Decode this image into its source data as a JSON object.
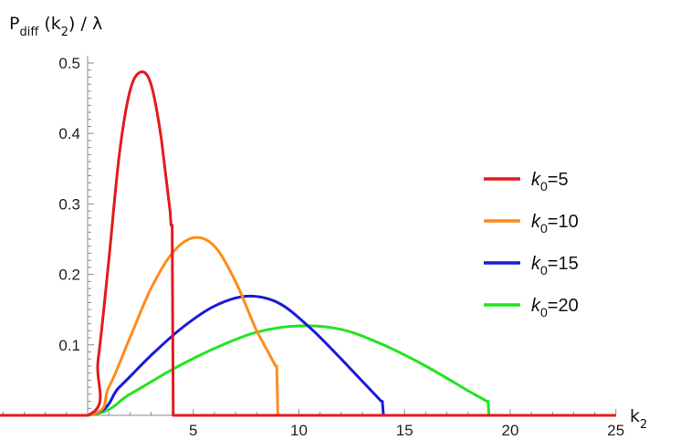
{
  "chart_data": {
    "type": "line",
    "ylabel": {
      "base": "P",
      "sub": "diff",
      "open": " (k",
      "arg_sub": "2",
      "close": ") / λ"
    },
    "xlabel": {
      "base": "k",
      "sub": "2"
    },
    "xlim": [
      -6,
      25
    ],
    "ylim": [
      0,
      0.51
    ],
    "x_ticks": [
      5,
      10,
      15,
      20,
      25
    ],
    "y_ticks": [
      0.1,
      0.2,
      0.3,
      0.4,
      0.5
    ],
    "x_tick_labels": [
      "5",
      "10",
      "15",
      "20",
      "25"
    ],
    "y_tick_labels": [
      "0.1",
      "0.2",
      "0.3",
      "0.4",
      "0.5"
    ],
    "grid": false,
    "legend_position": "right",
    "series": [
      {
        "name": "k0=5",
        "label_base": "k",
        "label_sub": "0",
        "label_rest": "=5",
        "color": "#e41a1c",
        "points": [
          [
            -6,
            0
          ],
          [
            0,
            0
          ],
          [
            0.5,
            0.08
          ],
          [
            1,
            0.22
          ],
          [
            1.5,
            0.37
          ],
          [
            2,
            0.46
          ],
          [
            2.5,
            0.487
          ],
          [
            3,
            0.47
          ],
          [
            3.5,
            0.39
          ],
          [
            3.9,
            0.29
          ],
          [
            3.95,
            0.27
          ],
          [
            4,
            0.27
          ],
          [
            4.05,
            0
          ],
          [
            25,
            0
          ]
        ]
      },
      {
        "name": "k0=10",
        "label_base": "k",
        "label_sub": "0",
        "label_rest": "=10",
        "color": "#ff8c1a",
        "points": [
          [
            -6,
            0
          ],
          [
            0,
            0
          ],
          [
            1,
            0.04
          ],
          [
            2,
            0.11
          ],
          [
            3,
            0.18
          ],
          [
            4,
            0.23
          ],
          [
            5,
            0.252
          ],
          [
            6,
            0.24
          ],
          [
            7,
            0.19
          ],
          [
            8,
            0.12
          ],
          [
            8.9,
            0.07
          ],
          [
            8.95,
            0.07
          ],
          [
            9,
            0
          ],
          [
            25,
            0
          ]
        ]
      },
      {
        "name": "k0=15",
        "label_base": "k",
        "label_sub": "0",
        "label_rest": "=15",
        "color": "#1a1ad8",
        "points": [
          [
            -6,
            0
          ],
          [
            0,
            0
          ],
          [
            1.5,
            0.04
          ],
          [
            3,
            0.085
          ],
          [
            4.5,
            0.125
          ],
          [
            6,
            0.155
          ],
          [
            7.5,
            0.169
          ],
          [
            9,
            0.16
          ],
          [
            10.5,
            0.125
          ],
          [
            12,
            0.08
          ],
          [
            13.9,
            0.02
          ],
          [
            13.95,
            0.02
          ],
          [
            14,
            0
          ],
          [
            25,
            0
          ]
        ]
      },
      {
        "name": "k0=20",
        "label_base": "k",
        "label_sub": "0",
        "label_rest": "=20",
        "color": "#22e422",
        "points": [
          [
            -6,
            0
          ],
          [
            0,
            0
          ],
          [
            2,
            0.03
          ],
          [
            4,
            0.065
          ],
          [
            6,
            0.095
          ],
          [
            8,
            0.118
          ],
          [
            10,
            0.127
          ],
          [
            12,
            0.122
          ],
          [
            14,
            0.1
          ],
          [
            16,
            0.07
          ],
          [
            18,
            0.035
          ],
          [
            18.9,
            0.02
          ],
          [
            18.95,
            0.02
          ],
          [
            19,
            0
          ],
          [
            25,
            0
          ]
        ]
      }
    ]
  }
}
